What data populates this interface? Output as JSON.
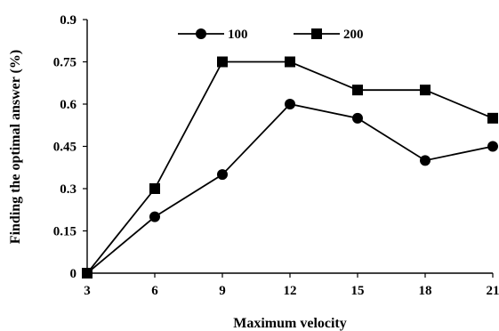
{
  "chart_data": {
    "type": "line",
    "xlabel": "Maximum velocity",
    "ylabel": "Finding the optimal answer (%)",
    "x": [
      3,
      6,
      9,
      12,
      15,
      18,
      21
    ],
    "x_ticks": [
      "3",
      "6",
      "9",
      "12",
      "15",
      "18",
      "21"
    ],
    "y_ticks": [
      "0",
      "0.15",
      "0.3",
      "0.45",
      "0.6",
      "0.75",
      "0.9"
    ],
    "ylim": [
      0,
      0.9
    ],
    "grid": false,
    "legend_position": "top-center",
    "series": [
      {
        "name": "100",
        "marker": "circle",
        "color": "#000000",
        "values": [
          0,
          0.2,
          0.35,
          0.6,
          0.55,
          0.4,
          0.45
        ]
      },
      {
        "name": "200",
        "marker": "square",
        "color": "#000000",
        "values": [
          0,
          0.3,
          0.75,
          0.75,
          0.65,
          0.65,
          0.55
        ]
      }
    ]
  }
}
